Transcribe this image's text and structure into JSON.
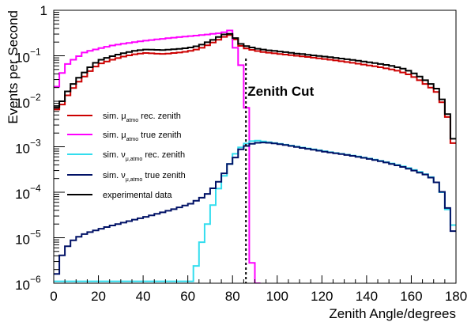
{
  "chart_data": {
    "type": "line",
    "xlabel": "Zenith Angle/degrees",
    "ylabel": "Events per Second",
    "xlim": [
      0,
      180
    ],
    "ylim": [
      1e-06,
      1
    ],
    "log_y": true,
    "grid": false,
    "legend_position": "left",
    "x_ticks": [
      "0",
      "20",
      "40",
      "60",
      "80",
      "100",
      "120",
      "140",
      "160",
      "180"
    ],
    "y_ticks": [
      {
        "value": 1e-06,
        "base": "10",
        "exp": "−6"
      },
      {
        "value": 1e-05,
        "base": "10",
        "exp": "−5"
      },
      {
        "value": 0.0001,
        "base": "10",
        "exp": "−4"
      },
      {
        "value": 0.001,
        "base": "10",
        "exp": "−3"
      },
      {
        "value": 0.01,
        "base": "10",
        "exp": "−2"
      },
      {
        "value": 0.1,
        "base": "10",
        "exp": "−1"
      },
      {
        "value": 1,
        "base": "1",
        "exp": ""
      }
    ],
    "annotation": {
      "text": "Zenith Cut",
      "x": 86
    },
    "bin_edges": [
      0,
      2.5,
      5,
      7.5,
      10,
      12.5,
      15,
      17.5,
      20,
      22.5,
      25,
      27.5,
      30,
      32.5,
      35,
      37.5,
      40,
      42.5,
      45,
      47.5,
      50,
      52.5,
      55,
      57.5,
      60,
      62.5,
      65,
      67.5,
      70,
      72.5,
      75,
      77.5,
      80,
      82.5,
      85,
      87.5,
      90,
      92.5,
      95,
      97.5,
      100,
      102.5,
      105,
      107.5,
      110,
      112.5,
      115,
      117.5,
      120,
      122.5,
      125,
      127.5,
      130,
      132.5,
      135,
      137.5,
      140,
      142.5,
      145,
      147.5,
      150,
      152.5,
      155,
      157.5,
      160,
      162.5,
      165,
      167.5,
      170,
      172.5,
      175,
      177.5,
      180
    ],
    "series": [
      {
        "label": "sim. μ rec. zenith",
        "label_main": "sim. μ",
        "label_sub": "atmo",
        "label_tail": "rec. zenith",
        "color": "#cc0000",
        "values": [
          0.0066,
          0.0085,
          0.0135,
          0.0195,
          0.027,
          0.035,
          0.046,
          0.058,
          0.068,
          0.075,
          0.082,
          0.089,
          0.096,
          0.102,
          0.108,
          0.112,
          0.115,
          0.113,
          0.111,
          0.11,
          0.112,
          0.115,
          0.118,
          0.122,
          0.128,
          0.137,
          0.15,
          0.17,
          0.195,
          0.225,
          0.26,
          0.285,
          0.23,
          0.165,
          0.145,
          0.135,
          0.127,
          0.121,
          0.117,
          0.113,
          0.109,
          0.106,
          0.103,
          0.1,
          0.097,
          0.094,
          0.091,
          0.088,
          0.085,
          0.082,
          0.079,
          0.076,
          0.073,
          0.07,
          0.067,
          0.064,
          0.061,
          0.059,
          0.056,
          0.053,
          0.05,
          0.047,
          0.043,
          0.039,
          0.034,
          0.029,
          0.024,
          0.02,
          0.016,
          0.0095,
          0.0045,
          0.0012
        ]
      },
      {
        "label": "sim. μ true zenith",
        "label_main": "sim. μ",
        "label_sub": "atmo",
        "label_tail": "true zenith",
        "color": "#ff00ff",
        "values": [
          0.021,
          0.042,
          0.066,
          0.082,
          0.098,
          0.118,
          0.128,
          0.138,
          0.148,
          0.158,
          0.168,
          0.176,
          0.184,
          0.192,
          0.2,
          0.208,
          0.215,
          0.222,
          0.229,
          0.236,
          0.243,
          0.25,
          0.257,
          0.264,
          0.271,
          0.278,
          0.286,
          0.294,
          0.303,
          0.312,
          0.33,
          0.36,
          0.15,
          0.062,
          0.0072,
          2.8e-06,
          8e-07,
          null,
          null,
          null,
          null,
          null,
          null,
          null,
          null,
          null,
          null,
          null,
          null,
          null,
          null,
          null,
          null,
          null,
          null,
          null,
          null,
          null,
          null,
          null,
          null,
          null,
          null,
          null,
          null,
          null,
          null,
          null,
          null,
          null,
          null,
          null
        ]
      },
      {
        "label": "sim. ν rec. zenith",
        "label_main": "sim. ν",
        "label_sub": "μ,atmo",
        "label_tail": "rec. zenith",
        "color": "#33ddee",
        "values": [
          1.1e-06,
          1.1e-06,
          1.1e-06,
          1.1e-06,
          1.1e-06,
          1.1e-06,
          1.1e-06,
          1.1e-06,
          1.1e-06,
          1.1e-06,
          1.1e-06,
          1.1e-06,
          1.1e-06,
          1.1e-06,
          1.1e-06,
          1.1e-06,
          1.1e-06,
          1.1e-06,
          1.1e-06,
          1.1e-06,
          1.1e-06,
          1.1e-06,
          1.1e-06,
          1.1e-06,
          1.1e-06,
          2.4e-06,
          8e-06,
          2e-05,
          5.2e-05,
          0.00012,
          0.00023,
          0.00042,
          0.0007,
          0.00097,
          0.00118,
          0.00133,
          0.00136,
          0.00131,
          0.00126,
          0.00121,
          0.00116,
          0.00111,
          0.00106,
          0.00101,
          0.00096,
          0.00092,
          0.00088,
          0.00084,
          0.0008,
          0.00076,
          0.00073,
          0.0007,
          0.00067,
          0.00064,
          0.00061,
          0.00058,
          0.00055,
          0.00052,
          0.00049,
          0.00046,
          0.00043,
          0.0004,
          0.00037,
          0.00034,
          0.00031,
          0.00028,
          0.00025,
          0.000215,
          0.000165,
          0.0001,
          4.2e-05,
          1.9e-05
        ]
      },
      {
        "label": "sim. ν true zenith",
        "label_main": "sim. ν",
        "label_sub": "μ,atmo",
        "label_tail": "true zenith",
        "color": "#001166",
        "values": [
          1.6e-06,
          4.1e-06,
          6.5e-06,
          8.8e-06,
          1.05e-05,
          1.2e-05,
          1.33e-05,
          1.45e-05,
          1.58e-05,
          1.72e-05,
          1.86e-05,
          2e-05,
          2.15e-05,
          2.32e-05,
          2.5e-05,
          2.68e-05,
          2.88e-05,
          3.1e-05,
          3.35e-05,
          3.62e-05,
          3.92e-05,
          4.25e-05,
          4.65e-05,
          5.1e-05,
          5.6e-05,
          6.5e-05,
          7.6e-05,
          9.2e-05,
          0.000122,
          0.00017,
          0.00026,
          0.00042,
          0.00058,
          0.00088,
          0.00104,
          0.00116,
          0.00122,
          0.00124,
          0.00122,
          0.00119,
          0.00114,
          0.00109,
          0.00104,
          0.00099,
          0.00094,
          0.0009,
          0.00086,
          0.00082,
          0.00078,
          0.00075,
          0.00072,
          0.00069,
          0.00066,
          0.00063,
          0.0006,
          0.00057,
          0.00054,
          0.00051,
          0.00048,
          0.00045,
          0.00042,
          0.00039,
          0.00036,
          0.00033,
          0.0003,
          0.00027,
          0.000245,
          0.00021,
          0.000165,
          0.000102,
          4.5e-05,
          1.4e-05
        ]
      },
      {
        "label": "experimental data",
        "label_main": "experimental data",
        "label_sub": "",
        "label_tail": "",
        "color": "#000000",
        "values": [
          0.0075,
          0.01,
          0.0165,
          0.024,
          0.033,
          0.043,
          0.056,
          0.07,
          0.082,
          0.09,
          0.098,
          0.106,
          0.114,
          0.121,
          0.128,
          0.133,
          0.137,
          0.136,
          0.135,
          0.134,
          0.136,
          0.139,
          0.142,
          0.146,
          0.152,
          0.162,
          0.176,
          0.198,
          0.224,
          0.258,
          0.295,
          0.305,
          0.245,
          0.182,
          0.163,
          0.152,
          0.143,
          0.137,
          0.132,
          0.128,
          0.124,
          0.12,
          0.116,
          0.112,
          0.109,
          0.105,
          0.102,
          0.099,
          0.096,
          0.093,
          0.09,
          0.087,
          0.084,
          0.081,
          0.078,
          0.075,
          0.072,
          0.069,
          0.066,
          0.063,
          0.06,
          0.056,
          0.052,
          0.047,
          0.041,
          0.035,
          0.029,
          0.024,
          0.019,
          0.011,
          0.0052,
          0.0015
        ]
      }
    ]
  }
}
